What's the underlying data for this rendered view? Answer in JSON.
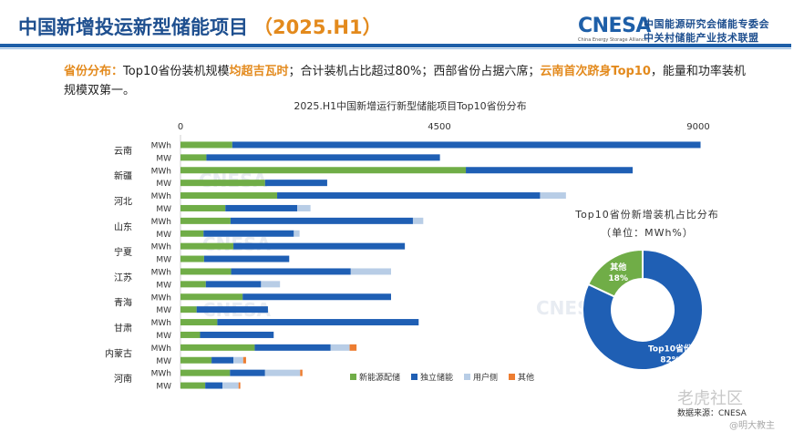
{
  "header": {
    "title": "中国新增投运新型储能项目",
    "period": "（2025.H1）",
    "logo_text": "CNESA",
    "logo_sub": "China Energy Storage Alliance",
    "logo_cn_1": "中国能源研究会储能专委会",
    "logo_cn_2": "中关村储能产业技术联盟"
  },
  "summary": {
    "p1": "省份分布：",
    "p2": "Top10省份装机规模",
    "p3": "均超吉瓦时",
    "p4": "；合计装机占比超过80%；西部省份占据六席；",
    "p5": "云南首次跻身Top10",
    "p6": "，能量和功率装机规模双第一。"
  },
  "watermark": {
    "text": "老虎社区",
    "handle": "@明大教主"
  },
  "colors": {
    "new_energy": "#70ad47",
    "standalone": "#1f5fb4",
    "user_side": "#b8cde6",
    "other": "#ed7d31",
    "pie_top10": "#1f5fb4",
    "pie_other": "#70ad47"
  },
  "chart_data": [
    {
      "type": "bar",
      "orientation": "horizontal",
      "stacked": true,
      "title": "2025.H1中国新增运行新型储能项目Top10省份分布",
      "xlim": [
        0,
        9000
      ],
      "xticks": [
        "0",
        "4500",
        "9000"
      ],
      "grid": false,
      "legend_position": "bottom-right",
      "provinces": [
        "云南",
        "新疆",
        "河北",
        "山东",
        "宁夏",
        "江苏",
        "青海",
        "甘肃",
        "内蒙古",
        "河南"
      ],
      "unit_labels": [
        "MWh",
        "MW"
      ],
      "series": [
        {
          "name": "新能源配储",
          "MWh": [
            900,
            4960,
            1680,
            870,
            920,
            880,
            1080,
            640,
            1290,
            860
          ],
          "MW": [
            450,
            1470,
            780,
            400,
            410,
            440,
            280,
            340,
            540,
            430
          ]
        },
        {
          "name": "独立储能",
          "MWh": [
            8140,
            2900,
            4570,
            3170,
            2980,
            2080,
            2580,
            3500,
            1320,
            610
          ],
          "MW": [
            4060,
            1080,
            1250,
            1570,
            1480,
            960,
            1240,
            1280,
            380,
            300
          ]
        },
        {
          "name": "用户侧",
          "MWh": [
            0,
            0,
            450,
            180,
            0,
            700,
            0,
            0,
            330,
            610
          ],
          "MW": [
            0,
            0,
            230,
            100,
            0,
            330,
            0,
            0,
            170,
            280
          ]
        },
        {
          "name": "其他",
          "MWh": [
            0,
            0,
            0,
            0,
            0,
            0,
            0,
            0,
            120,
            40
          ],
          "MW": [
            0,
            0,
            0,
            0,
            0,
            0,
            0,
            0,
            50,
            30
          ]
        }
      ]
    },
    {
      "type": "pie",
      "style": "donut",
      "title": "Top10省份新增装机占比分布",
      "unit_note": "（单位：MWh%）",
      "slices": [
        {
          "name": "Top10省份",
          "value": 82,
          "label": "82%"
        },
        {
          "name": "其他",
          "value": 18,
          "label": "18%"
        }
      ]
    }
  ],
  "source": "数据来源：CNESA"
}
